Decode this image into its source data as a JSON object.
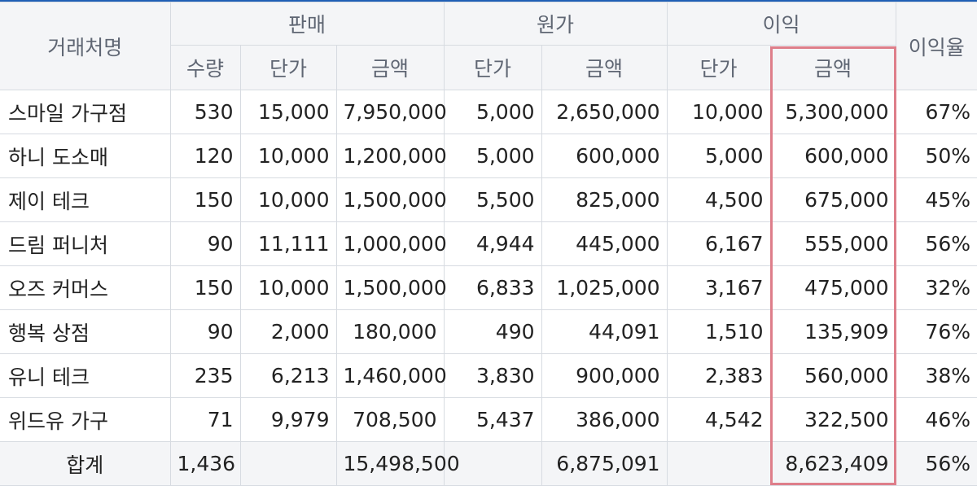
{
  "headers": {
    "client": "거래처명",
    "sales": "판매",
    "cost": "원가",
    "profit": "이익",
    "margin": "이익율",
    "qty": "수량",
    "unit_price": "단가",
    "amount": "금액"
  },
  "rows": [
    {
      "name": "스마일 가구점",
      "qty": "530",
      "sale_price": "15,000",
      "sale_amount": "7,950,000",
      "cost_price": "5,000",
      "cost_amount": "2,650,000",
      "profit_price": "10,000",
      "profit_amount": "5,300,000",
      "margin": "67%"
    },
    {
      "name": "하니 도소매",
      "qty": "120",
      "sale_price": "10,000",
      "sale_amount": "1,200,000",
      "cost_price": "5,000",
      "cost_amount": "600,000",
      "profit_price": "5,000",
      "profit_amount": "600,000",
      "margin": "50%"
    },
    {
      "name": "제이 테크",
      "qty": "150",
      "sale_price": "10,000",
      "sale_amount": "1,500,000",
      "cost_price": "5,500",
      "cost_amount": "825,000",
      "profit_price": "4,500",
      "profit_amount": "675,000",
      "margin": "45%"
    },
    {
      "name": "드림 퍼니처",
      "qty": "90",
      "sale_price": "11,111",
      "sale_amount": "1,000,000",
      "cost_price": "4,944",
      "cost_amount": "445,000",
      "profit_price": "6,167",
      "profit_amount": "555,000",
      "margin": "56%"
    },
    {
      "name": "오즈 커머스",
      "qty": "150",
      "sale_price": "10,000",
      "sale_amount": "1,500,000",
      "cost_price": "6,833",
      "cost_amount": "1,025,000",
      "profit_price": "3,167",
      "profit_amount": "475,000",
      "margin": "32%"
    },
    {
      "name": "행복 상점",
      "qty": "90",
      "sale_price": "2,000",
      "sale_amount": "180,000",
      "cost_price": "490",
      "cost_amount": "44,091",
      "profit_price": "1,510",
      "profit_amount": "135,909",
      "margin": "76%"
    },
    {
      "name": "유니 테크",
      "qty": "235",
      "sale_price": "6,213",
      "sale_amount": "1,460,000",
      "cost_price": "3,830",
      "cost_amount": "900,000",
      "profit_price": "2,383",
      "profit_amount": "560,000",
      "margin": "38%"
    },
    {
      "name": "위드유 가구",
      "qty": "71",
      "sale_price": "9,979",
      "sale_amount": "708,500",
      "cost_price": "5,437",
      "cost_amount": "386,000",
      "profit_price": "4,542",
      "profit_amount": "322,500",
      "margin": "46%"
    }
  ],
  "total": {
    "label": "합계",
    "qty": "1,436",
    "sale_price": "",
    "sale_amount": "15,498,500",
    "cost_price": "",
    "cost_amount": "6,875,091",
    "profit_price": "",
    "profit_amount": "8,623,409",
    "margin": "56%"
  },
  "colors": {
    "header_bg": "#f4f5f7",
    "top_rule": "#1f5fb5",
    "highlight": "#de7e8a"
  }
}
